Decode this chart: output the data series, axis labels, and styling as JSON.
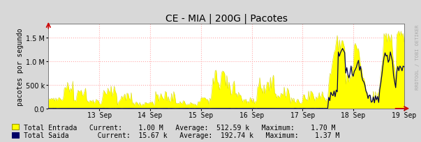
{
  "title": "CE - MIA | 200G | Pacotes",
  "ylabel": "pacotes por segundo",
  "background_color": "#d8d8d8",
  "plot_bg_color": "#ffffff",
  "grid_color": "#ffaaaa",
  "x_tick_labels": [
    "13 Sep",
    "14 Sep",
    "15 Sep",
    "16 Sep",
    "17 Sep",
    "18 Sep",
    "19 Sep"
  ],
  "ytick_values": [
    0,
    500000,
    1000000,
    1500000
  ],
  "ylim": [
    0,
    1800000
  ],
  "legend_line1": "Total Entrada   Current:    1.00 M   Average:  512.59 k   Maximum:    1.70 M",
  "legend_line2": "Total Saida       Current:  15.67 k   Average:  192.74 k   Maximum:    1.37 M",
  "watermark": "RRDTOOL / TOBI OETIKER",
  "title_fontsize": 10,
  "axis_fontsize": 7,
  "legend_fontsize": 7
}
